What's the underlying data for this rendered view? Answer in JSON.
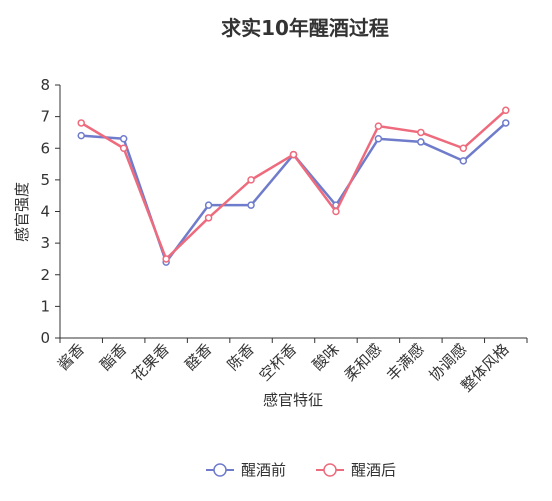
{
  "chart_data": {
    "type": "line",
    "title": "求实10年醒酒过程",
    "xlabel": "感官特征",
    "ylabel": "感官强度",
    "categories": [
      "酱香",
      "酯香",
      "花果香",
      "醛香",
      "陈香",
      "空杯香",
      "酸味",
      "柔和感",
      "丰满感",
      "协调感",
      "整体风格"
    ],
    "series": [
      {
        "name": "醒酒前",
        "color": "#6f7ccb",
        "values": [
          6.4,
          6.3,
          2.4,
          4.2,
          4.2,
          5.8,
          4.2,
          6.3,
          6.2,
          5.6,
          6.8
        ]
      },
      {
        "name": "醒酒后",
        "color": "#ee6b7d",
        "values": [
          6.8,
          6.0,
          2.5,
          3.8,
          5.0,
          5.8,
          4.0,
          6.7,
          6.5,
          6.0,
          7.2
        ]
      }
    ],
    "ylim": [
      0,
      8
    ],
    "yticks": [
      0,
      1,
      2,
      3,
      4,
      5,
      6,
      7,
      8
    ],
    "grid": false,
    "legend_position": "bottom"
  }
}
